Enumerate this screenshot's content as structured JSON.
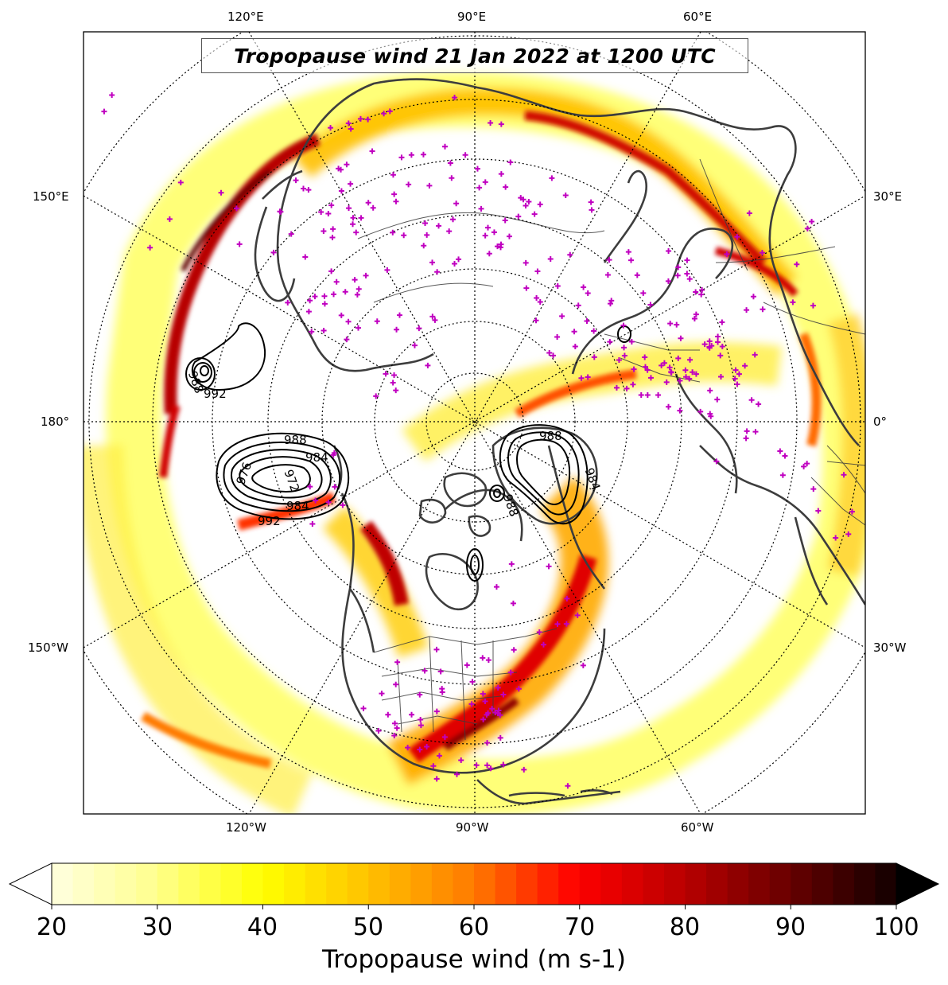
{
  "title": "Tropopause wind 21 Jan 2022 at 1200 UTC",
  "longitude_labels": {
    "top": [
      "120°E",
      "90°E",
      "60°E"
    ],
    "left": [
      "150°E",
      "180°",
      "150°W"
    ],
    "right": [
      "30°E",
      "0°",
      "30°W"
    ],
    "bottom": [
      "120°W",
      "90°W",
      "60°W"
    ]
  },
  "pressure_contour_labels": [
    "988",
    "992",
    "988",
    "984",
    "976",
    "972",
    "984",
    "992",
    "988",
    "984",
    "988"
  ],
  "colorbar": {
    "label": "Tropopause wind (m s-1)",
    "ticks": [
      "20",
      "30",
      "40",
      "50",
      "60",
      "70",
      "80",
      "90",
      "100"
    ],
    "min": 20,
    "max": 100,
    "extend": "both",
    "colormap": "hot_r"
  },
  "colors": {
    "coastline": "#3d3d3d",
    "border": "#3d3d3d",
    "graticule": "#000000",
    "station_marker": "#c000c0",
    "contour": "#000000"
  },
  "markers": {
    "symbol": "+",
    "meaning": "observation stations"
  }
}
